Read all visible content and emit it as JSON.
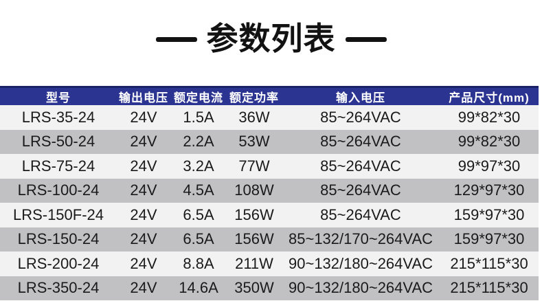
{
  "title": {
    "text": "参数列表"
  },
  "colors": {
    "header_bg": "#2B3490",
    "header_top_strip": "#1A2268",
    "header_text": "#FFFFFF",
    "row_light": "#F2F2F3",
    "row_dark": "#C1C1C3",
    "body_text": "#1A1A1A",
    "title_text": "#121212"
  },
  "table": {
    "columns": [
      "型号",
      "输出电压",
      "额定电流",
      "额定功率",
      "输入电压",
      "产品尺寸(mm)"
    ],
    "rows": [
      [
        "LRS-35-24",
        "24V",
        "1.5A",
        "36W",
        "85~264VAC",
        "99*82*30"
      ],
      [
        "LRS-50-24",
        "24V",
        "2.2A",
        "53W",
        "85~264VAC",
        "99*82*30"
      ],
      [
        "LRS-75-24",
        "24V",
        "3.2A",
        "77W",
        "85~264VAC",
        "99*97*30"
      ],
      [
        "LRS-100-24",
        "24V",
        "4.5A",
        "108W",
        "85~264VAC",
        "129*97*30"
      ],
      [
        "LRS-150F-24",
        "24V",
        "6.5A",
        "156W",
        "85~264VAC",
        "159*97*30"
      ],
      [
        "LRS-150-24",
        "24V",
        "6.5A",
        "156W",
        "85~132/170~264VAC",
        "159*97*30"
      ],
      [
        "LRS-200-24",
        "24V",
        "8.8A",
        "211W",
        "90~132/180~264VAC",
        "215*115*30"
      ],
      [
        "LRS-350-24",
        "24V",
        "14.6A",
        "350W",
        "90~132/180~264VAC",
        "215*115*30"
      ]
    ]
  }
}
